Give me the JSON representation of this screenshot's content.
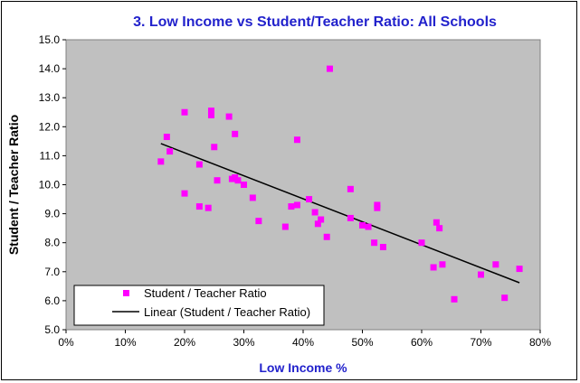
{
  "chart_data": {
    "type": "scatter",
    "title": "3.  Low Income vs Student/Teacher Ratio:  All Schools",
    "xlabel": "Low Income %",
    "ylabel": "Student / Teacher Ratio",
    "xlim": [
      0,
      0.8
    ],
    "ylim": [
      5.0,
      15.0
    ],
    "x_ticks": [
      0,
      0.1,
      0.2,
      0.3,
      0.4,
      0.5,
      0.6,
      0.7,
      0.8
    ],
    "x_tick_labels": [
      "0%",
      "10%",
      "20%",
      "30%",
      "40%",
      "50%",
      "60%",
      "70%",
      "80%"
    ],
    "y_ticks": [
      5,
      6,
      7,
      8,
      9,
      10,
      11,
      12,
      13,
      14,
      15
    ],
    "y_tick_labels": [
      "5.0",
      "6.0",
      "7.0",
      "8.0",
      "9.0",
      "10.0",
      "11.0",
      "12.0",
      "13.0",
      "14.0",
      "15.0"
    ],
    "grid": false,
    "plot_background": "#c0c0c0",
    "legend_position": "bottom-left",
    "series": [
      {
        "name": "Student / Teacher Ratio",
        "kind": "points",
        "color": "#ff00ff",
        "points": [
          [
            0.16,
            10.8
          ],
          [
            0.17,
            11.65
          ],
          [
            0.175,
            11.15
          ],
          [
            0.2,
            12.5
          ],
          [
            0.2,
            9.7
          ],
          [
            0.225,
            10.7
          ],
          [
            0.225,
            9.25
          ],
          [
            0.24,
            9.2
          ],
          [
            0.245,
            12.55
          ],
          [
            0.245,
            12.4
          ],
          [
            0.25,
            11.3
          ],
          [
            0.255,
            10.15
          ],
          [
            0.275,
            12.35
          ],
          [
            0.28,
            10.2
          ],
          [
            0.285,
            10.25
          ],
          [
            0.285,
            11.75
          ],
          [
            0.29,
            10.15
          ],
          [
            0.3,
            10.0
          ],
          [
            0.315,
            9.55
          ],
          [
            0.325,
            8.75
          ],
          [
            0.37,
            8.55
          ],
          [
            0.38,
            9.25
          ],
          [
            0.39,
            9.3
          ],
          [
            0.39,
            11.55
          ],
          [
            0.41,
            9.5
          ],
          [
            0.42,
            9.05
          ],
          [
            0.425,
            8.65
          ],
          [
            0.43,
            8.8
          ],
          [
            0.44,
            8.2
          ],
          [
            0.445,
            14.0
          ],
          [
            0.48,
            9.85
          ],
          [
            0.48,
            8.85
          ],
          [
            0.5,
            8.6
          ],
          [
            0.51,
            8.55
          ],
          [
            0.52,
            8.0
          ],
          [
            0.525,
            9.3
          ],
          [
            0.525,
            9.2
          ],
          [
            0.535,
            7.85
          ],
          [
            0.6,
            8.0
          ],
          [
            0.62,
            7.15
          ],
          [
            0.625,
            8.7
          ],
          [
            0.63,
            8.5
          ],
          [
            0.635,
            7.25
          ],
          [
            0.655,
            6.05
          ],
          [
            0.7,
            6.9
          ],
          [
            0.725,
            7.25
          ],
          [
            0.74,
            6.1
          ],
          [
            0.765,
            7.1
          ]
        ]
      },
      {
        "name": "Linear (Student / Teacher Ratio)",
        "kind": "line",
        "color": "#000000",
        "points": [
          [
            0.16,
            11.42
          ],
          [
            0.765,
            6.62
          ]
        ]
      }
    ]
  }
}
